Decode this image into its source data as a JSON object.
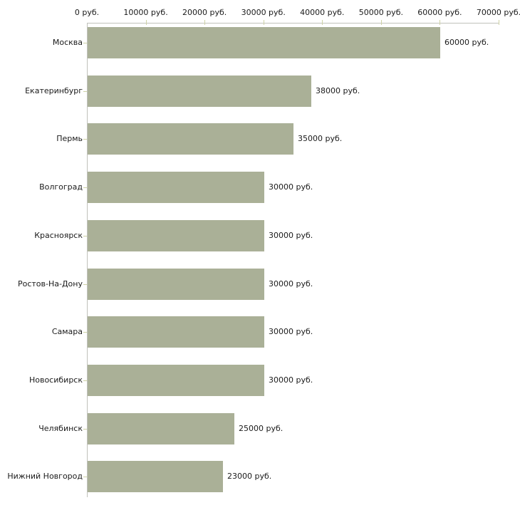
{
  "chart_data": {
    "type": "bar",
    "orientation": "horizontal",
    "title": "",
    "xlabel": "",
    "ylabel": "",
    "categories": [
      "Москва",
      "Екатеринбург",
      "Пермь",
      "Волгоград",
      "Красноярск",
      "Ростов-На-Дону",
      "Самара",
      "Новосибирск",
      "Челябинск",
      "Нижний Новгород"
    ],
    "values": [
      60000,
      38000,
      35000,
      30000,
      30000,
      30000,
      30000,
      30000,
      25000,
      23000
    ],
    "value_labels": [
      "60000 руб.",
      "38000 руб.",
      "35000 руб.",
      "30000 руб.",
      "30000 руб.",
      "30000 руб.",
      "30000 руб.",
      "30000 руб.",
      "25000 руб.",
      "23000 руб."
    ],
    "x_axis": {
      "position": "top",
      "min": 0,
      "max": 70000,
      "tick_step": 10000,
      "tick_labels": [
        "0 руб.",
        "10000 руб.",
        "20000 руб.",
        "30000 руб.",
        "40000 руб.",
        "50000 руб.",
        "60000 руб.",
        "70000 руб."
      ]
    },
    "grid": false,
    "legend": false,
    "colors": {
      "bar": "#aab097",
      "axis_line": "#c0c1bb",
      "tick_mark": "#ced2a6",
      "text": "#1a1a1a",
      "background": "#ffffff"
    }
  }
}
